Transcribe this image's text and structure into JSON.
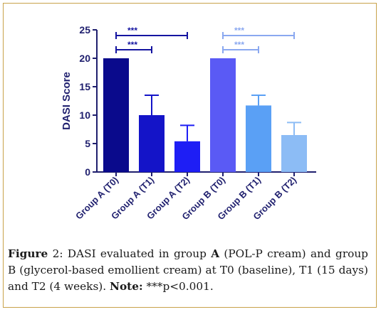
{
  "chart_data": {
    "type": "bar",
    "ylabel": "DASI Score",
    "ylim": [
      0,
      25
    ],
    "yticks": [
      0,
      5,
      10,
      15,
      20,
      25
    ],
    "categories": [
      "Group A (T0)",
      "Group A (T1)",
      "Group A (T2)",
      "Group B (T0)",
      "Group B (T1)",
      "Group B (T2)"
    ],
    "values": [
      20,
      10,
      5.4,
      20,
      11.7,
      6.5
    ],
    "errors": [
      0,
      3.5,
      2.8,
      0,
      1.8,
      2.2
    ],
    "colors": [
      "#0a0a8c",
      "#1414c8",
      "#1e1ef5",
      "#5a5af5",
      "#5aa0f5",
      "#8cbcf5"
    ],
    "significance": [
      {
        "from": 0,
        "to": 2,
        "label": "***",
        "color": "#1414a0",
        "level": 24
      },
      {
        "from": 0,
        "to": 1,
        "label": "***",
        "color": "#1414a0",
        "level": 21.5
      },
      {
        "from": 3,
        "to": 5,
        "label": "***",
        "color": "#8aa8f0",
        "level": 24
      },
      {
        "from": 3,
        "to": 4,
        "label": "***",
        "color": "#8aa8f0",
        "level": 21.5
      }
    ]
  },
  "caption": {
    "label": "Figure",
    "number": "2:",
    "text": " DASI evaluated in group ",
    "group_a": "A",
    "text2": " (POL-P cream) and group B (glycerol-based emollient cream) at T0 (baseline), T1 (15 days) and T2 (4 weeks). ",
    "note_label": "Note:",
    "note_text": " ***p<0.001."
  }
}
